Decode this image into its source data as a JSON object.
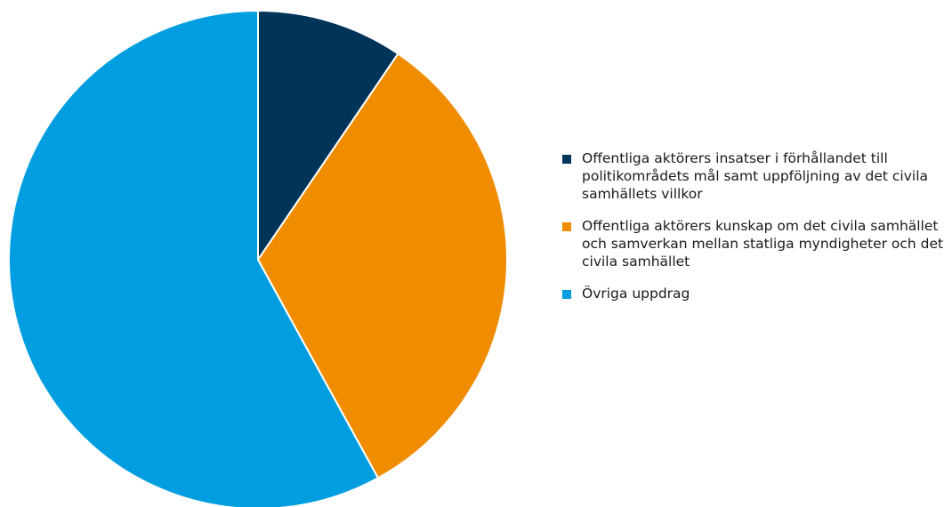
{
  "chart_data": {
    "type": "pie",
    "title": "",
    "start_angle_deg": 0,
    "direction": "clockwise",
    "slices": [
      {
        "label": "Offentliga aktörers insatser i förhållandet till politikområdets mål samt uppföljning av det civila samhällets villkor",
        "value": 9.5,
        "color": "#003458"
      },
      {
        "label": "Offentliga aktörers kunskap om det civila samhället och samverkan mellan statliga myndigheter och det civila samhället",
        "value": 32.5,
        "color": "#f08c00"
      },
      {
        "label": "Övriga uppdrag",
        "value": 58.0,
        "color": "#009ee0"
      }
    ],
    "legend_position": "right"
  }
}
